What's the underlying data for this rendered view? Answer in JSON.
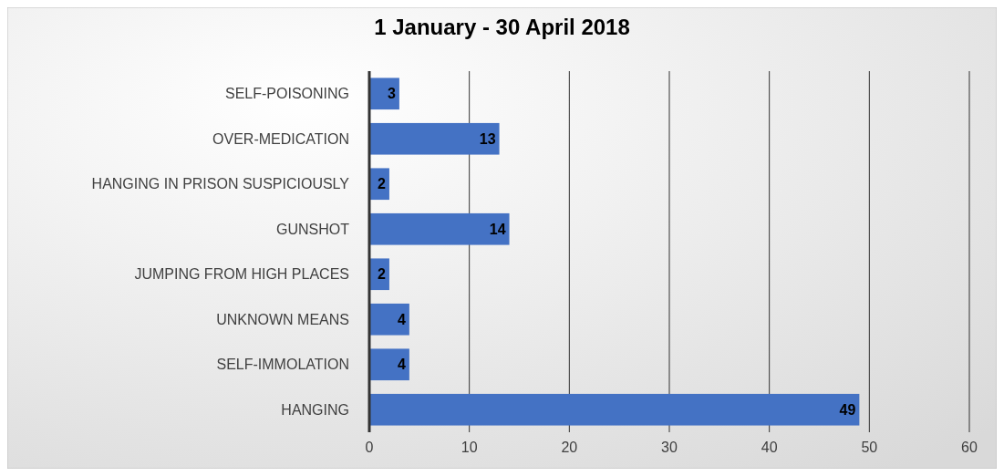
{
  "chart_data": {
    "type": "bar",
    "orientation": "horizontal",
    "title": "1 January - 30 April 2018",
    "categories": [
      "SELF-POISONING",
      "OVER-MEDICATION",
      "HANGING IN PRISON SUSPICIOUSLY",
      "GUNSHOT",
      "JUMPING FROM HIGH PLACES",
      "UNKNOWN MEANS",
      "SELF-IMMOLATION",
      "HANGING"
    ],
    "values": [
      3,
      13,
      2,
      14,
      2,
      4,
      4,
      49
    ],
    "color": "#4472c4",
    "xlim": [
      0,
      60
    ],
    "xticks": [
      0,
      10,
      20,
      30,
      40,
      50,
      60
    ],
    "grid": "x",
    "data_labels": true
  }
}
